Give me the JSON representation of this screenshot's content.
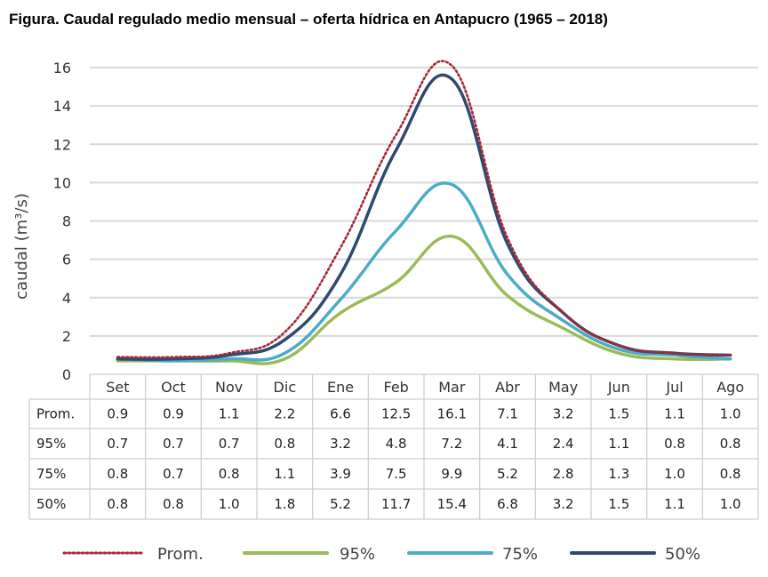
{
  "title": "Figura. Caudal regulado medio mensual – oferta hídrica en Antapucro (1965 – 2018)",
  "chart_data": {
    "type": "line",
    "title": "Figura. Caudal regulado medio mensual – oferta hídrica en Antapucro (1965 – 2018)",
    "ylabel": "caudal (m³/s)",
    "xlabel": "",
    "ylim": [
      0,
      16
    ],
    "yticks": [
      0,
      2,
      4,
      6,
      8,
      10,
      12,
      14,
      16
    ],
    "grid": true,
    "legend_position": "bottom",
    "categories": [
      "Set",
      "Oct",
      "Nov",
      "Dic",
      "Ene",
      "Feb",
      "Mar",
      "Abr",
      "May",
      "Jun",
      "Jul",
      "Ago"
    ],
    "series": [
      {
        "name": "Prom.",
        "values": [
          0.9,
          0.9,
          1.1,
          2.2,
          6.6,
          12.5,
          16.1,
          7.1,
          3.2,
          1.5,
          1.1,
          1.0
        ],
        "color": "#a52a3a",
        "style": "dotted"
      },
      {
        "name": "95%",
        "values": [
          0.7,
          0.7,
          0.7,
          0.8,
          3.2,
          4.8,
          7.2,
          4.1,
          2.4,
          1.1,
          0.8,
          0.8
        ],
        "color": "#9bbb59",
        "style": "solid"
      },
      {
        "name": "75%",
        "values": [
          0.8,
          0.7,
          0.8,
          1.1,
          3.9,
          7.5,
          9.9,
          5.2,
          2.8,
          1.3,
          1.0,
          0.8
        ],
        "color": "#4bacc6",
        "style": "solid"
      },
      {
        "name": "50%",
        "values": [
          0.8,
          0.8,
          1.0,
          1.8,
          5.2,
          11.7,
          15.4,
          6.8,
          3.2,
          1.5,
          1.1,
          1.0
        ],
        "color": "#2e4a6e",
        "style": "solid"
      }
    ],
    "table_row_order": [
      "Prom.",
      "95%",
      "75%",
      "50%"
    ]
  }
}
